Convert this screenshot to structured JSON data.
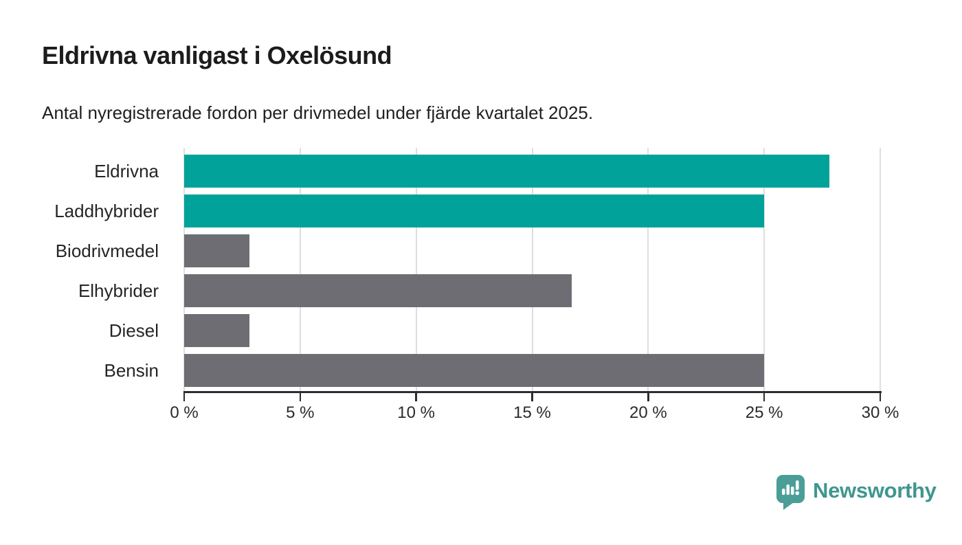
{
  "header": {
    "title": "Eldrivna vanligast i Oxelösund",
    "subtitle": "Antal nyregistrerade fordon per drivmedel under fjärde kvartalet 2025."
  },
  "chart_data": {
    "type": "bar",
    "orientation": "horizontal",
    "title": "Eldrivna vanligast i Oxelösund",
    "subtitle": "Antal nyregistrerade fordon per drivmedel under fjärde kvartalet 2025.",
    "categories": [
      "Eldrivna",
      "Laddhybrider",
      "Biodrivmedel",
      "Elhybrider",
      "Diesel",
      "Bensin"
    ],
    "values": [
      27.8,
      25,
      2.8,
      16.7,
      2.8,
      25
    ],
    "unit": "%",
    "bar_colors": [
      "#00a29a",
      "#00a29a",
      "#6e6d73",
      "#6e6d73",
      "#6e6d73",
      "#6e6d73"
    ],
    "xlim": [
      0,
      30
    ],
    "x_tick_values": [
      0,
      5,
      10,
      15,
      20,
      25,
      30
    ],
    "x_tick_labels": [
      "0 %",
      "5 %",
      "10 %",
      "15 %",
      "20 %",
      "25 %",
      "30 %"
    ],
    "xlabel": "",
    "ylabel": "",
    "grid": true,
    "legend": false
  },
  "footer": {
    "brand": "Newsworthy"
  },
  "colors": {
    "accent_teal": "#00a29a",
    "bar_gray": "#6e6d73",
    "grid": "#dedede",
    "axis": "#2d2d2d",
    "text": "#1c1c1c",
    "brand_teal": "#3f968f"
  }
}
